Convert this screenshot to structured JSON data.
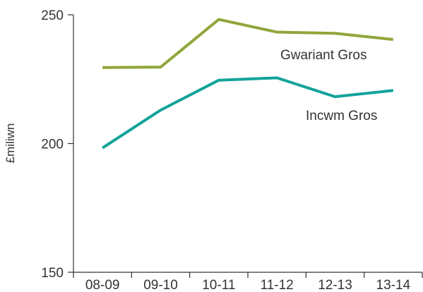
{
  "chart_data": {
    "type": "line",
    "categories": [
      "08-09",
      "09-10",
      "10-11",
      "11-12",
      "12-13",
      "13-14"
    ],
    "ylabel": "£miliwn",
    "ylim": [
      150,
      250
    ],
    "yticks": [
      150,
      200,
      250
    ],
    "grid": false,
    "series": [
      {
        "name": "Gwariant Gros",
        "color": "#8fa63a",
        "values": [
          229.5,
          229.7,
          248.2,
          243.3,
          242.8,
          240.4
        ]
      },
      {
        "name": "Incwm Gros",
        "color": "#12a39a",
        "values": [
          198.3,
          213.0,
          224.6,
          225.5,
          218.2,
          220.6
        ]
      }
    ]
  }
}
